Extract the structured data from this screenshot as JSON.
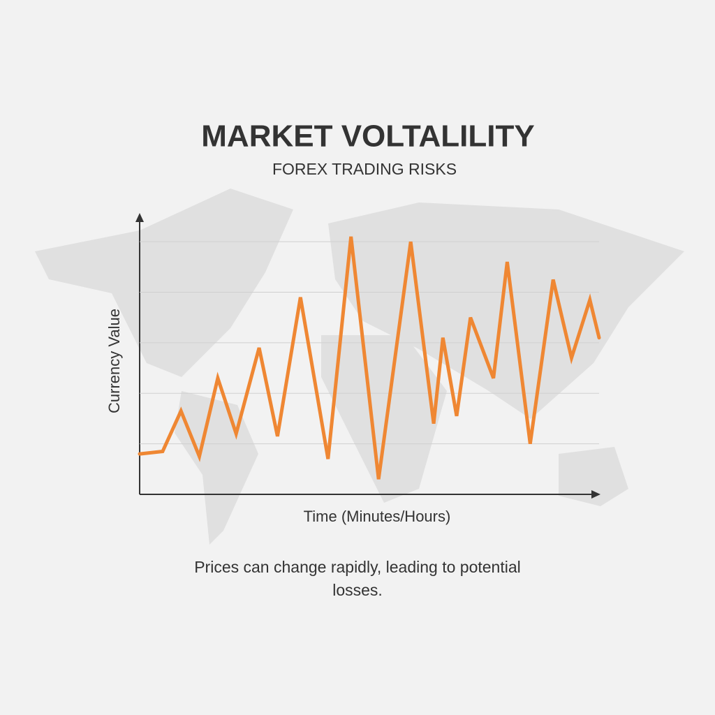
{
  "chart_data": {
    "type": "line",
    "title": "MARKET VOLTALILITY",
    "subtitle": "FOREX TRADING RISKS",
    "x_label": "Time (Minutes/Hours)",
    "y_label": "Currency Value",
    "caption": "Prices can change rapidly, leading to potential losses.",
    "x": [
      0,
      5,
      9,
      13,
      17,
      21,
      26,
      30,
      35,
      41,
      46,
      52,
      59,
      64,
      66,
      69,
      72,
      77,
      80,
      85,
      90,
      94,
      98,
      100
    ],
    "values": [
      16,
      17,
      33,
      15,
      46,
      24,
      58,
      23,
      78,
      14,
      102,
      6,
      100,
      28,
      62,
      31,
      70,
      46,
      92,
      20,
      85,
      54,
      77,
      62
    ],
    "color": "#ef8733",
    "xlim": [
      0,
      100
    ],
    "ylim": [
      0,
      110
    ],
    "yticks": [
      20,
      40,
      60,
      80,
      100
    ],
    "grid": true
  }
}
